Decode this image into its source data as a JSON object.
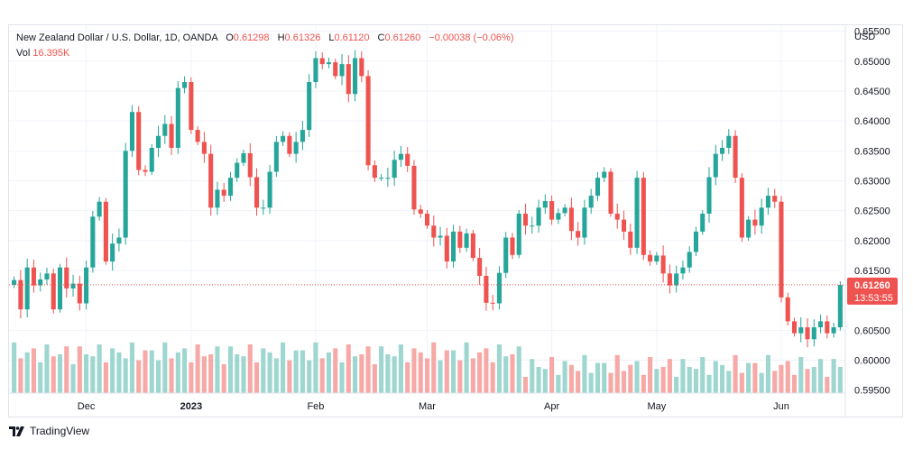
{
  "legend": {
    "symbol": "New Zealand Dollar / U.S. Dollar, 1D, OANDA",
    "o_label": "O",
    "o_value": "0.61298",
    "h_label": "H",
    "h_value": "0.61326",
    "l_label": "L",
    "l_value": "0.61120",
    "c_label": "C",
    "c_value": "0.61260",
    "change": "−0.00038 (−0.06%)",
    "vol_label": "Vol",
    "vol_value": "16.395K"
  },
  "brand": {
    "name": "TradingView"
  },
  "colors": {
    "up": "#26a69a",
    "down": "#ef5350",
    "up_vol": "#9ed6d0",
    "down_vol": "#f6a9a6",
    "grid": "#f0f3fa",
    "axis_text": "#131722",
    "price_line": "#ef5350"
  },
  "chart_data": {
    "type": "candlestick",
    "currency_label": "USD",
    "y_ticks": [
      "0.65500",
      "0.65000",
      "0.64500",
      "0.64000",
      "0.63500",
      "0.63000",
      "0.62500",
      "0.62000",
      "0.61500",
      "0.60500",
      "0.60000",
      "0.59500"
    ],
    "ylim": [
      0.5945,
      0.656
    ],
    "x_ticks": [
      {
        "label": "Dec",
        "index": 11,
        "bold": false
      },
      {
        "label": "2023",
        "index": 27,
        "bold": true
      },
      {
        "label": "Feb",
        "index": 46,
        "bold": false
      },
      {
        "label": "Mar",
        "index": 63,
        "bold": false
      },
      {
        "label": "Apr",
        "index": 82,
        "bold": false
      },
      {
        "label": "May",
        "index": 98,
        "bold": false
      },
      {
        "label": "Jun",
        "index": 117,
        "bold": false
      }
    ],
    "last_price": {
      "value": 0.6126,
      "label": "0.61260",
      "countdown": "13:53:55"
    },
    "closes": [
      0.6134,
      0.6085,
      0.6155,
      0.6125,
      0.6135,
      0.6145,
      0.6085,
      0.6155,
      0.612,
      0.6128,
      0.6095,
      0.6155,
      0.624,
      0.6265,
      0.6165,
      0.6195,
      0.6205,
      0.635,
      0.6415,
      0.6318,
      0.6315,
      0.6355,
      0.6375,
      0.6395,
      0.6355,
      0.6455,
      0.6465,
      0.6385,
      0.6365,
      0.6345,
      0.6255,
      0.6285,
      0.6275,
      0.6305,
      0.633,
      0.6346,
      0.6306,
      0.6255,
      0.6255,
      0.6315,
      0.6365,
      0.6375,
      0.6345,
      0.6365,
      0.6385,
      0.6465,
      0.6505,
      0.6495,
      0.6498,
      0.6475,
      0.6495,
      0.6445,
      0.6505,
      0.6475,
      0.6326,
      0.6305,
      0.6305,
      0.6305,
      0.6335,
      0.6345,
      0.6325,
      0.6252,
      0.6245,
      0.6225,
      0.6205,
      0.6208,
      0.6165,
      0.6215,
      0.6188,
      0.6212,
      0.6171,
      0.6141,
      0.6096,
      0.6095,
      0.6146,
      0.6205,
      0.6176,
      0.6245,
      0.6225,
      0.6225,
      0.6255,
      0.6266,
      0.6235,
      0.6246,
      0.6255,
      0.6216,
      0.6205,
      0.6255,
      0.6275,
      0.6305,
      0.6315,
      0.6245,
      0.6235,
      0.6215,
      0.6188,
      0.6305,
      0.6176,
      0.6165,
      0.6175,
      0.6145,
      0.6125,
      0.6145,
      0.6155,
      0.6181,
      0.6215,
      0.6245,
      0.6306,
      0.6345,
      0.6355,
      0.6375,
      0.6305,
      0.6205,
      0.6235,
      0.6225,
      0.6255,
      0.6275,
      0.6265,
      0.6105,
      0.6065,
      0.6045,
      0.6055,
      0.6035,
      0.6055,
      0.6065,
      0.6045,
      0.6055,
      0.6126
    ]
  }
}
